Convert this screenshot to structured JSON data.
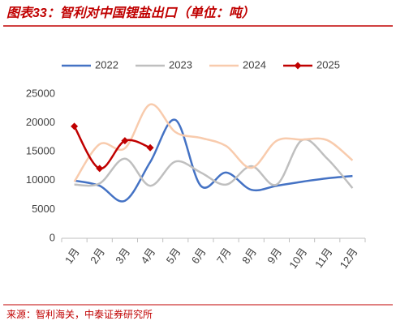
{
  "chart_data": {
    "type": "line",
    "title": "图表33：智利对中国锂盐出口（单位：吨）",
    "source": "来源：智利海关，中泰证券研究所",
    "categories": [
      "1月",
      "2月",
      "3月",
      "4月",
      "5月",
      "6月",
      "7月",
      "8月",
      "9月",
      "10月",
      "11月",
      "12月"
    ],
    "series": [
      {
        "name": "2022",
        "color": "#4472c4",
        "values": [
          10000,
          9100,
          6500,
          13200,
          20500,
          9100,
          11400,
          8400,
          9100,
          9800,
          10400,
          10800
        ]
      },
      {
        "name": "2023",
        "color": "#bfbfbf",
        "values": [
          9300,
          9500,
          13800,
          9100,
          13300,
          11400,
          9300,
          12500,
          9300,
          17000,
          13800,
          8700
        ]
      },
      {
        "name": "2024",
        "color": "#f8cbad",
        "values": [
          9800,
          16300,
          15600,
          23200,
          18400,
          17400,
          16000,
          12200,
          16900,
          17100,
          17000,
          13500
        ]
      },
      {
        "name": "2025",
        "color": "#c00000",
        "marker": "diamond",
        "values": [
          19400,
          12100,
          16900,
          15700,
          null,
          null,
          null,
          null,
          null,
          null,
          null,
          null
        ]
      }
    ],
    "ylim": [
      0,
      25000
    ],
    "yticks": [
      0,
      5000,
      10000,
      15000,
      20000,
      25000
    ],
    "grid": false,
    "legend": "top"
  }
}
